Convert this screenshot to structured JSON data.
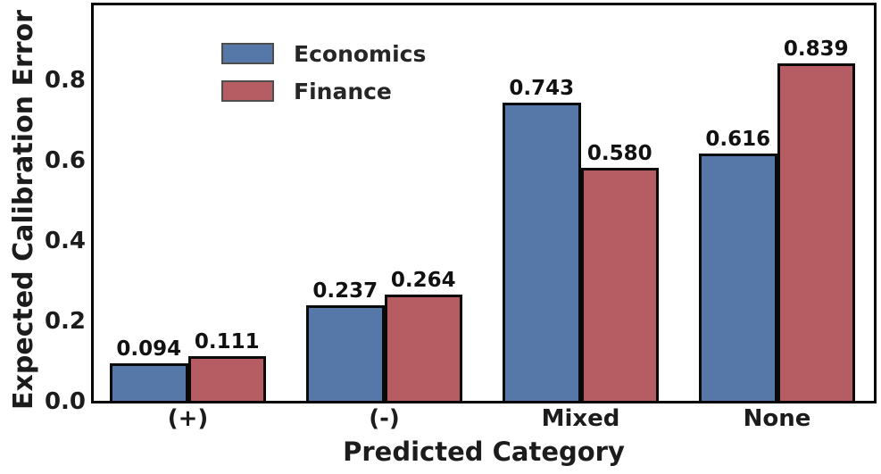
{
  "figure": {
    "background": "#ffffff",
    "text_color": "#1c1c1c",
    "spine_color": "#000000"
  },
  "chart_data": {
    "type": "bar",
    "title": "",
    "xlabel": "Predicted Category",
    "ylabel": "Expected Calibration Error",
    "categories": [
      "(+)",
      "(-)",
      "Mixed",
      "None"
    ],
    "series": [
      {
        "name": "Economics",
        "color": "#5578a8",
        "values": [
          0.094,
          0.237,
          0.743,
          0.616
        ],
        "labels": [
          "0.094",
          "0.237",
          "0.743",
          "0.616"
        ]
      },
      {
        "name": "Finance",
        "color": "#b55d62",
        "values": [
          0.111,
          0.264,
          0.58,
          0.839
        ],
        "labels": [
          "0.111",
          "0.264",
          "0.580",
          "0.839"
        ]
      }
    ],
    "yticks": [
      "0.0",
      "0.2",
      "0.4",
      "0.6",
      "0.8"
    ],
    "ylim": [
      0,
      0.99
    ],
    "grid": false,
    "legend_position": "upper-left",
    "bar_edge_color": "#0a0a0a"
  }
}
